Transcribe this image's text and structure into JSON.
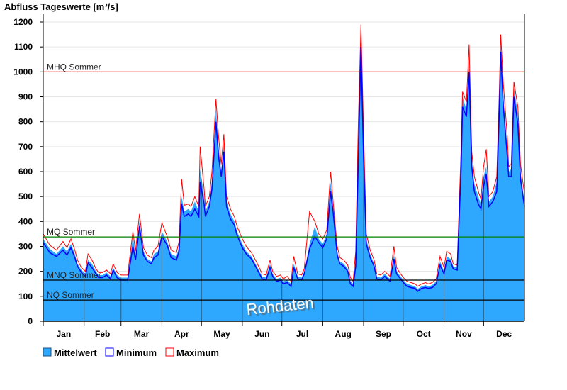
{
  "chart_data": {
    "type": "area",
    "title": "Abfluss Tageswerte [m³/s]",
    "xlabel": "",
    "ylabel": "Abfluss Tageswerte [m³/s]",
    "ylim": [
      0,
      1200
    ],
    "xlim_days": [
      0,
      365
    ],
    "yticks": [
      "0",
      "100",
      "200",
      "300",
      "400",
      "500",
      "600",
      "700",
      "800",
      "900",
      "1000",
      "1100",
      "1200"
    ],
    "months": [
      {
        "label": "Jan",
        "start": 0
      },
      {
        "label": "Feb",
        "start": 31
      },
      {
        "label": "Mar",
        "start": 59
      },
      {
        "label": "Apr",
        "start": 90
      },
      {
        "label": "May",
        "start": 120
      },
      {
        "label": "Jun",
        "start": 151
      },
      {
        "label": "Jul",
        "start": 181
      },
      {
        "label": "Aug",
        "start": 212
      },
      {
        "label": "Sep",
        "start": 243
      },
      {
        "label": "Oct",
        "start": 273
      },
      {
        "label": "Nov",
        "start": 304
      },
      {
        "label": "Dec",
        "start": 334
      }
    ],
    "grid": true,
    "reference_lines": [
      {
        "label": "MHQ Sommer",
        "value": 1000,
        "color": "#ff0000"
      },
      {
        "label": "MQ Sommer",
        "value": 338,
        "color": "#008000"
      },
      {
        "label": "MNQ Sommer",
        "value": 165,
        "color": "#000000"
      },
      {
        "label": "NQ Sommer",
        "value": 85,
        "color": "#000000"
      }
    ],
    "legend_position": "bottom-left",
    "series": [
      {
        "name": "Mittelwert",
        "color": "#2ea8ff"
      },
      {
        "name": "Minimum",
        "color": "#0000ff"
      },
      {
        "name": "Maximum",
        "color": "#ff0000"
      }
    ],
    "points_columns": [
      "day",
      "mittelwert",
      "minimum",
      "maximum"
    ],
    "points": [
      [
        0,
        330,
        315,
        350
      ],
      [
        5,
        290,
        275,
        305
      ],
      [
        10,
        270,
        260,
        285
      ],
      [
        15,
        300,
        285,
        320
      ],
      [
        18,
        280,
        265,
        295
      ],
      [
        21,
        310,
        295,
        330
      ],
      [
        24,
        270,
        255,
        285
      ],
      [
        26,
        230,
        220,
        245
      ],
      [
        29,
        205,
        195,
        215
      ],
      [
        32,
        190,
        180,
        200
      ],
      [
        34,
        245,
        235,
        270
      ],
      [
        37,
        230,
        215,
        245
      ],
      [
        40,
        200,
        190,
        210
      ],
      [
        42,
        185,
        175,
        195
      ],
      [
        45,
        185,
        175,
        195
      ],
      [
        48,
        195,
        185,
        205
      ],
      [
        51,
        180,
        170,
        190
      ],
      [
        53,
        215,
        205,
        230
      ],
      [
        56,
        185,
        175,
        195
      ],
      [
        59,
        175,
        165,
        185
      ],
      [
        64,
        175,
        165,
        185
      ],
      [
        68,
        340,
        300,
        360
      ],
      [
        70,
        260,
        245,
        280
      ],
      [
        73,
        400,
        380,
        430
      ],
      [
        76,
        280,
        265,
        295
      ],
      [
        79,
        250,
        240,
        265
      ],
      [
        82,
        240,
        230,
        255
      ],
      [
        84,
        270,
        255,
        285
      ],
      [
        87,
        280,
        265,
        300
      ],
      [
        90,
        360,
        340,
        395
      ],
      [
        94,
        320,
        305,
        340
      ],
      [
        97,
        270,
        255,
        285
      ],
      [
        101,
        260,
        245,
        275
      ],
      [
        103,
        300,
        280,
        320
      ],
      [
        105,
        500,
        470,
        570
      ],
      [
        107,
        440,
        420,
        465
      ],
      [
        110,
        450,
        430,
        470
      ],
      [
        112,
        440,
        420,
        460
      ],
      [
        115,
        480,
        450,
        500
      ],
      [
        118,
        440,
        420,
        460
      ],
      [
        119,
        610,
        560,
        700
      ],
      [
        122,
        500,
        470,
        530
      ],
      [
        123,
        440,
        420,
        460
      ],
      [
        126,
        480,
        460,
        500
      ],
      [
        128,
        560,
        530,
        600
      ],
      [
        131,
        850,
        800,
        890
      ],
      [
        133,
        700,
        660,
        740
      ],
      [
        135,
        600,
        580,
        630
      ],
      [
        137,
        720,
        680,
        750
      ],
      [
        139,
        480,
        460,
        500
      ],
      [
        142,
        430,
        410,
        450
      ],
      [
        145,
        400,
        385,
        420
      ],
      [
        147,
        360,
        345,
        380
      ],
      [
        151,
        310,
        295,
        330
      ],
      [
        154,
        280,
        270,
        300
      ],
      [
        158,
        260,
        250,
        275
      ],
      [
        162,
        220,
        210,
        235
      ],
      [
        166,
        180,
        170,
        190
      ],
      [
        169,
        175,
        165,
        185
      ],
      [
        172,
        230,
        215,
        245
      ],
      [
        174,
        190,
        180,
        200
      ],
      [
        177,
        170,
        160,
        180
      ],
      [
        180,
        175,
        165,
        185
      ],
      [
        182,
        160,
        150,
        170
      ],
      [
        185,
        165,
        155,
        180
      ],
      [
        188,
        150,
        140,
        160
      ],
      [
        190,
        230,
        215,
        260
      ],
      [
        193,
        180,
        170,
        190
      ],
      [
        196,
        175,
        165,
        185
      ],
      [
        198,
        200,
        190,
        210
      ],
      [
        202,
        310,
        290,
        440
      ],
      [
        206,
        380,
        340,
        400
      ],
      [
        209,
        330,
        315,
        350
      ],
      [
        212,
        310,
        295,
        330
      ],
      [
        215,
        350,
        330,
        365
      ],
      [
        218,
        560,
        520,
        600
      ],
      [
        220,
        450,
        430,
        470
      ],
      [
        223,
        280,
        265,
        300
      ],
      [
        225,
        240,
        230,
        255
      ],
      [
        228,
        230,
        220,
        245
      ],
      [
        231,
        210,
        200,
        225
      ],
      [
        233,
        160,
        150,
        175
      ],
      [
        235,
        150,
        140,
        160
      ],
      [
        237,
        250,
        220,
        280
      ],
      [
        239,
        700,
        650,
        800
      ],
      [
        241,
        1150,
        1100,
        1190
      ],
      [
        243,
        700,
        650,
        760
      ],
      [
        245,
        330,
        310,
        350
      ],
      [
        248,
        270,
        255,
        285
      ],
      [
        251,
        230,
        220,
        245
      ],
      [
        253,
        180,
        170,
        190
      ],
      [
        256,
        175,
        165,
        185
      ],
      [
        259,
        190,
        180,
        200
      ],
      [
        261,
        180,
        170,
        190
      ],
      [
        263,
        170,
        160,
        180
      ],
      [
        266,
        270,
        250,
        300
      ],
      [
        268,
        200,
        190,
        215
      ],
      [
        271,
        180,
        170,
        190
      ],
      [
        274,
        160,
        150,
        170
      ],
      [
        276,
        150,
        140,
        160
      ],
      [
        279,
        145,
        135,
        155
      ],
      [
        282,
        140,
        132,
        150
      ],
      [
        284,
        130,
        120,
        140
      ],
      [
        287,
        140,
        132,
        150
      ],
      [
        290,
        145,
        135,
        155
      ],
      [
        292,
        140,
        132,
        150
      ],
      [
        295,
        145,
        135,
        155
      ],
      [
        298,
        160,
        150,
        170
      ],
      [
        301,
        240,
        225,
        260
      ],
      [
        304,
        200,
        190,
        215
      ],
      [
        306,
        260,
        245,
        280
      ],
      [
        309,
        250,
        240,
        270
      ],
      [
        311,
        220,
        210,
        230
      ],
      [
        314,
        215,
        205,
        225
      ],
      [
        317,
        650,
        620,
        700
      ],
      [
        318,
        900,
        860,
        920
      ],
      [
        321,
        850,
        820,
        880
      ],
      [
        323,
        1040,
        1000,
        1110
      ],
      [
        325,
        650,
        620,
        680
      ],
      [
        327,
        550,
        520,
        580
      ],
      [
        330,
        500,
        470,
        520
      ],
      [
        332,
        470,
        450,
        490
      ],
      [
        334,
        580,
        540,
        620
      ],
      [
        336,
        620,
        590,
        690
      ],
      [
        338,
        480,
        460,
        500
      ],
      [
        341,
        500,
        480,
        520
      ],
      [
        344,
        560,
        520,
        580
      ],
      [
        346,
        900,
        860,
        940
      ],
      [
        347,
        1110,
        1080,
        1150
      ],
      [
        349,
        900,
        860,
        950
      ],
      [
        352,
        700,
        660,
        740
      ],
      [
        353,
        600,
        580,
        620
      ],
      [
        355,
        610,
        580,
        630
      ],
      [
        357,
        940,
        900,
        960
      ],
      [
        360,
        830,
        790,
        860
      ],
      [
        362,
        600,
        570,
        630
      ],
      [
        365,
        480,
        460,
        510
      ]
    ],
    "watermark": "Rohdaten"
  }
}
